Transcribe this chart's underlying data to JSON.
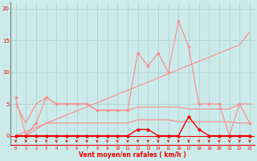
{
  "x": [
    0,
    1,
    2,
    3,
    4,
    5,
    6,
    7,
    8,
    9,
    10,
    11,
    12,
    13,
    14,
    15,
    16,
    17,
    18,
    19,
    20,
    21,
    22,
    23
  ],
  "wind_gust": [
    6,
    0,
    2,
    6,
    5,
    5,
    5,
    5,
    4,
    4,
    4,
    4,
    13,
    11,
    13,
    10,
    18,
    14,
    5,
    5,
    5,
    0,
    5,
    2
  ],
  "wind_avg": [
    0,
    0,
    0,
    0,
    0,
    0,
    0,
    0,
    0,
    0,
    0,
    0,
    1,
    1,
    0,
    0,
    0,
    3,
    1,
    0,
    0,
    0,
    0,
    0
  ],
  "trend_line": [
    0,
    0.65,
    1.3,
    1.95,
    2.6,
    3.25,
    3.9,
    4.55,
    5.2,
    5.85,
    6.5,
    7.15,
    7.8,
    8.45,
    9.1,
    9.75,
    10.4,
    11.05,
    11.7,
    12.35,
    13.0,
    13.65,
    14.3,
    16.3
  ],
  "env_upper": [
    5,
    2,
    5,
    6,
    5,
    5,
    5,
    5,
    4,
    4,
    4,
    4,
    4.5,
    4.5,
    4.5,
    4.5,
    4.5,
    4.2,
    4.2,
    4.2,
    4.2,
    4.2,
    5,
    5
  ],
  "env_lower": [
    0,
    0,
    1,
    2,
    2,
    2,
    2,
    2,
    2,
    2,
    2,
    2,
    2.5,
    2.5,
    2.5,
    2.5,
    2.2,
    2.2,
    2.2,
    2.2,
    2.2,
    2.2,
    2,
    2
  ],
  "bg_color": "#cceaea",
  "grid_color": "#aacccc",
  "line_dark": "#ee0000",
  "line_light": "#ff8888",
  "xlabel": "Vent moyen/en rafales ( km/h )",
  "yticks": [
    0,
    5,
    10,
    15,
    20
  ],
  "xlim": [
    -0.5,
    23.5
  ],
  "ylim": [
    -1.5,
    21
  ]
}
